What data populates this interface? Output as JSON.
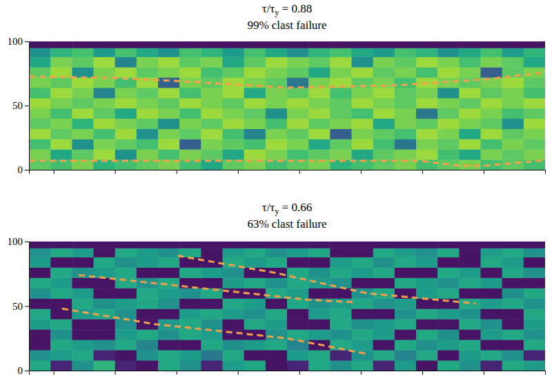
{
  "chart_data": [
    {
      "type": "heatmap",
      "title": "τ/τy = 0.88",
      "subtitle": "99% clast failure",
      "color": "viridis",
      "zlim": [
        0,
        1
      ],
      "xlim": [
        0,
        8.4
      ],
      "xticks": [
        0.4,
        1.4,
        2.4,
        3.4,
        4.4,
        5.4,
        6.4,
        7.4
      ],
      "ylim": [
        0,
        100
      ],
      "yticks": [
        0,
        50,
        100
      ],
      "tick_labels": "y",
      "x_edges": [
        0,
        0.35,
        0.7,
        1.05,
        1.4,
        1.75,
        2.1,
        2.45,
        2.8,
        3.15,
        3.5,
        3.85,
        4.2,
        4.55,
        4.9,
        5.25,
        5.6,
        5.95,
        6.3,
        6.65,
        7.0,
        7.35,
        7.7,
        8.05,
        8.4
      ],
      "y_edges": [
        0,
        8,
        16,
        24,
        32,
        40,
        48,
        56,
        64,
        72,
        80,
        88,
        95,
        100
      ],
      "cells": [
        [
          0.75,
          0.7,
          0.8,
          0.65,
          0.7,
          0.75,
          0.8,
          0.7,
          0.6,
          0.75,
          0.8,
          0.7,
          0.75,
          0.8,
          0.65,
          0.7,
          0.75,
          0.8,
          0.7,
          0.75,
          0.8,
          0.7,
          0.75,
          0.7
        ],
        [
          0.8,
          0.6,
          0.75,
          0.85,
          0.5,
          0.8,
          0.7,
          0.8,
          0.75,
          0.6,
          0.85,
          0.8,
          0.7,
          0.75,
          0.8,
          0.6,
          0.75,
          0.8,
          0.85,
          0.7,
          0.6,
          0.8,
          0.75,
          0.8
        ],
        [
          0.7,
          0.85,
          0.5,
          0.8,
          0.75,
          0.7,
          0.85,
          0.3,
          0.8,
          0.75,
          0.7,
          0.85,
          0.8,
          0.6,
          0.75,
          0.85,
          0.7,
          0.4,
          0.8,
          0.75,
          0.85,
          0.7,
          0.8,
          0.75
        ],
        [
          0.85,
          0.75,
          0.8,
          0.7,
          0.85,
          0.5,
          0.8,
          0.75,
          0.85,
          0.7,
          0.45,
          0.8,
          0.75,
          0.85,
          0.3,
          0.8,
          0.75,
          0.7,
          0.85,
          0.8,
          0.6,
          0.85,
          0.75,
          0.8
        ],
        [
          0.75,
          0.8,
          0.65,
          0.85,
          0.8,
          0.75,
          0.5,
          0.8,
          0.75,
          0.85,
          0.8,
          0.7,
          0.85,
          0.75,
          0.8,
          0.85,
          0.6,
          0.8,
          0.75,
          0.85,
          0.8,
          0.75,
          0.5,
          0.85
        ],
        [
          0.8,
          0.7,
          0.85,
          0.75,
          0.6,
          0.85,
          0.8,
          0.7,
          0.85,
          0.8,
          0.75,
          0.5,
          0.8,
          0.85,
          0.75,
          0.7,
          0.85,
          0.8,
          0.4,
          0.75,
          0.85,
          0.8,
          0.7,
          0.75
        ],
        [
          0.85,
          0.8,
          0.75,
          0.8,
          0.85,
          0.8,
          0.75,
          0.85,
          0.8,
          0.75,
          0.85,
          0.8,
          0.85,
          0.8,
          0.75,
          0.85,
          0.8,
          0.75,
          0.85,
          0.8,
          0.75,
          0.85,
          0.8,
          0.85
        ],
        [
          0.7,
          0.85,
          0.8,
          0.45,
          0.8,
          0.75,
          0.85,
          0.7,
          0.8,
          0.85,
          0.6,
          0.8,
          0.75,
          0.85,
          0.7,
          0.8,
          0.85,
          0.75,
          0.8,
          0.5,
          0.85,
          0.75,
          0.8,
          0.7
        ],
        [
          0.8,
          0.75,
          0.85,
          0.8,
          0.7,
          0.85,
          0.3,
          0.8,
          0.75,
          0.85,
          0.8,
          0.75,
          0.4,
          0.8,
          0.85,
          0.75,
          0.8,
          0.7,
          0.85,
          0.8,
          0.75,
          0.8,
          0.85,
          0.75
        ],
        [
          0.75,
          0.85,
          0.5,
          0.8,
          0.85,
          0.75,
          0.8,
          0.85,
          0.7,
          0.75,
          0.85,
          0.8,
          0.75,
          0.6,
          0.8,
          0.85,
          0.75,
          0.8,
          0.7,
          0.85,
          0.8,
          0.3,
          0.75,
          0.8
        ],
        [
          0.6,
          0.8,
          0.75,
          0.85,
          0.45,
          0.8,
          0.85,
          0.75,
          0.8,
          0.6,
          0.75,
          0.85,
          0.8,
          0.75,
          0.85,
          0.5,
          0.8,
          0.75,
          0.85,
          0.8,
          0.7,
          0.8,
          0.75,
          0.6
        ],
        [
          0.5,
          0.65,
          0.7,
          0.55,
          0.7,
          0.6,
          0.5,
          0.7,
          0.65,
          0.55,
          0.7,
          0.6,
          0.5,
          0.65,
          0.7,
          0.6,
          0.55,
          0.7,
          0.65,
          0.5,
          0.6,
          0.7,
          0.55,
          0.65
        ],
        [
          0.05,
          0.05,
          0.05,
          0.05,
          0.05,
          0.05,
          0.05,
          0.05,
          0.05,
          0.05,
          0.05,
          0.05,
          0.05,
          0.05,
          0.05,
          0.05,
          0.05,
          0.05,
          0.05,
          0.05,
          0.05,
          0.05,
          0.05,
          0.05
        ]
      ],
      "series": [
        {
          "color": "#f5a04a",
          "line_style": "dashed",
          "x": [
            0,
            1.4,
            2.48,
            4.2,
            5.92,
            7.43,
            8.4
          ],
          "values": [
            72.6,
            71.5,
            69,
            64,
            65.6,
            70.4,
            75.8
          ]
        },
        {
          "color": "#f5a04a",
          "line_style": "dashed",
          "x": [
            0,
            3.12,
            6.35,
            7.0,
            7.43,
            8.4
          ],
          "values": [
            7,
            7,
            7,
            3.2,
            3.2,
            7.5
          ]
        }
      ]
    },
    {
      "type": "heatmap",
      "title": "τ/τy = 0.66",
      "subtitle": "63% clast failure",
      "color": "viridis",
      "zlim": [
        0,
        1
      ],
      "xlim": [
        0,
        8.4
      ],
      "xticks": [
        0.4,
        1.4,
        2.4,
        3.4,
        4.4,
        5.4,
        6.4,
        7.4
      ],
      "ylim": [
        0,
        100
      ],
      "yticks": [
        0,
        50,
        100
      ],
      "tick_labels": "y",
      "x_edges": [
        0,
        0.35,
        0.7,
        1.05,
        1.4,
        1.75,
        2.1,
        2.45,
        2.8,
        3.15,
        3.5,
        3.85,
        4.2,
        4.55,
        4.9,
        5.25,
        5.6,
        5.95,
        6.3,
        6.65,
        7.0,
        7.35,
        7.7,
        8.05,
        8.4
      ],
      "y_edges": [
        0,
        8,
        16,
        24,
        32,
        40,
        48,
        56,
        64,
        72,
        80,
        88,
        95,
        100
      ],
      "cells": [
        [
          0.6,
          0.1,
          0.5,
          0.65,
          0.1,
          0.05,
          0.6,
          0.5,
          0.1,
          0.55,
          0.6,
          0.05,
          0.1,
          0.6,
          0.5,
          0.6,
          0.1,
          0.55,
          0.05,
          0.6,
          0.5,
          0.1,
          0.6,
          0.55
        ],
        [
          0.5,
          0.55,
          0.6,
          0.1,
          0.05,
          0.5,
          0.6,
          0.55,
          0.4,
          0.6,
          0.05,
          0.05,
          0.55,
          0.6,
          0.1,
          0.5,
          0.6,
          0.45,
          0.6,
          0.05,
          0.55,
          0.6,
          0.5,
          0.1
        ],
        [
          0.05,
          0.6,
          0.55,
          0.5,
          0.6,
          0.45,
          0.05,
          0.05,
          0.6,
          0.5,
          0.55,
          0.6,
          0.45,
          0.05,
          0.6,
          0.55,
          0.05,
          0.6,
          0.5,
          0.55,
          0.6,
          0.05,
          0.05,
          0.6
        ],
        [
          0.05,
          0.5,
          0.05,
          0.05,
          0.55,
          0.6,
          0.5,
          0.6,
          0.55,
          0.05,
          0.05,
          0.5,
          0.6,
          0.55,
          0.5,
          0.6,
          0.55,
          0.05,
          0.6,
          0.5,
          0.05,
          0.55,
          0.6,
          0.5
        ],
        [
          0.55,
          0.6,
          0.05,
          0.05,
          0.5,
          0.05,
          0.55,
          0.6,
          0.5,
          0.05,
          0.6,
          0.55,
          0.05,
          0.05,
          0.6,
          0.5,
          0.55,
          0.6,
          0.05,
          0.05,
          0.6,
          0.5,
          0.05,
          0.55
        ],
        [
          0.6,
          0.05,
          0.55,
          0.6,
          0.5,
          0.05,
          0.05,
          0.55,
          0.6,
          0.55,
          0.5,
          0.6,
          0.05,
          0.55,
          0.6,
          0.05,
          0.05,
          0.5,
          0.6,
          0.55,
          0.5,
          0.05,
          0.05,
          0.6
        ],
        [
          0.05,
          0.05,
          0.6,
          0.5,
          0.55,
          0.6,
          0.5,
          0.05,
          0.05,
          0.6,
          0.55,
          0.05,
          0.6,
          0.5,
          0.55,
          0.6,
          0.5,
          0.55,
          0.05,
          0.05,
          0.6,
          0.55,
          0.6,
          0.5
        ],
        [
          0.5,
          0.6,
          0.55,
          0.05,
          0.05,
          0.6,
          0.55,
          0.5,
          0.6,
          0.05,
          0.05,
          0.6,
          0.55,
          0.05,
          0.05,
          0.5,
          0.6,
          0.05,
          0.55,
          0.6,
          0.05,
          0.05,
          0.5,
          0.6
        ],
        [
          0.6,
          0.55,
          0.05,
          0.05,
          0.6,
          0.5,
          0.6,
          0.05,
          0.05,
          0.55,
          0.6,
          0.5,
          0.6,
          0.55,
          0.5,
          0.05,
          0.05,
          0.6,
          0.55,
          0.5,
          0.6,
          0.55,
          0.05,
          0.05
        ],
        [
          0.05,
          0.6,
          0.5,
          0.55,
          0.6,
          0.05,
          0.05,
          0.6,
          0.55,
          0.5,
          0.05,
          0.05,
          0.6,
          0.5,
          0.6,
          0.55,
          0.6,
          0.05,
          0.05,
          0.6,
          0.55,
          0.05,
          0.6,
          0.5
        ],
        [
          0.55,
          0.05,
          0.05,
          0.6,
          0.5,
          0.55,
          0.6,
          0.05,
          0.05,
          0.6,
          0.55,
          0.6,
          0.05,
          0.05,
          0.55,
          0.6,
          0.5,
          0.6,
          0.55,
          0.05,
          0.05,
          0.6,
          0.55,
          0.05
        ],
        [
          0.5,
          0.6,
          0.55,
          0.05,
          0.6,
          0.55,
          0.5,
          0.6,
          0.05,
          0.55,
          0.6,
          0.5,
          0.55,
          0.6,
          0.05,
          0.05,
          0.6,
          0.55,
          0.5,
          0.6,
          0.05,
          0.55,
          0.6,
          0.5
        ],
        [
          0.05,
          0.05,
          0.05,
          0.05,
          0.05,
          0.05,
          0.05,
          0.05,
          0.05,
          0.05,
          0.05,
          0.05,
          0.05,
          0.05,
          0.05,
          0.05,
          0.05,
          0.05,
          0.05,
          0.05,
          0.05,
          0.05,
          0.05,
          0.05
        ]
      ],
      "series": [
        {
          "color": "#f5a04a",
          "line_style": "dashed",
          "x": [
            2.42,
            3.98,
            5.49,
            7.27
          ],
          "values": [
            89,
            76,
            60,
            52
          ]
        },
        {
          "color": "#f5a04a",
          "line_style": "dashed",
          "x": [
            0.81,
            2.58,
            4.52,
            5.28
          ],
          "values": [
            74,
            65,
            55,
            53
          ]
        },
        {
          "color": "#f5a04a",
          "line_style": "dashed",
          "x": [
            0.54,
            2.05,
            4.2,
            5.49
          ],
          "values": [
            48,
            36,
            25,
            13
          ]
        }
      ]
    }
  ]
}
